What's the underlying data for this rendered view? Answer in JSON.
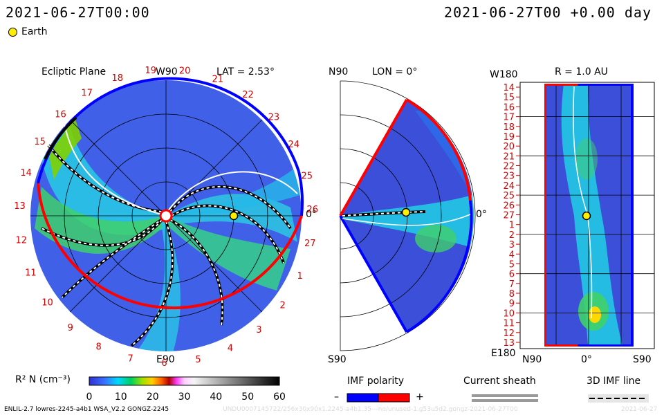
{
  "header": {
    "datetime_left": "2021-06-27T00:00",
    "datetime_right": "2021-06-27T00 +0.00 day",
    "legend_earth": "Earth"
  },
  "ecliptic": {
    "title": "Ecliptic Plane",
    "top_label": "W90",
    "bottom_label": "E90",
    "right_label": "0°",
    "lat_label": "LAT = 2.53°",
    "carrington_ticks": [
      "19",
      "20",
      "21",
      "22",
      "23",
      "24",
      "25",
      "26",
      "27",
      "1",
      "2",
      "3",
      "4",
      "5",
      "6",
      "7",
      "8",
      "9",
      "10",
      "11",
      "12",
      "13",
      "14",
      "15",
      "16",
      "17",
      "18"
    ]
  },
  "meridional": {
    "top_label": "N90",
    "bottom_label": "S90",
    "right_label": "0°",
    "lon_label": "LON = 0°"
  },
  "radial": {
    "title": "R = 1.0 AU",
    "top_label": "W180",
    "bottom_label": "E180",
    "x_labels": [
      "N90",
      "0°",
      "S90"
    ],
    "y_ticks": [
      "14",
      "15",
      "16",
      "17",
      "18",
      "19",
      "20",
      "21",
      "22",
      "23",
      "24",
      "25",
      "26",
      "27",
      "1",
      "2",
      "3",
      "4",
      "5",
      "6",
      "7",
      "8",
      "9",
      "10",
      "11",
      "12",
      "13"
    ]
  },
  "colorbar": {
    "label": "R² N (cm⁻³)",
    "ticks": [
      "0",
      "10",
      "20",
      "30",
      "40",
      "50",
      "60"
    ],
    "min": 0,
    "max": 60
  },
  "legends": {
    "imf_polarity": "IMF polarity",
    "minus": "–",
    "plus": "+",
    "current_sheath": "Current sheath",
    "imf_line": "3D IMF line"
  },
  "footer": {
    "model_info": "ENLIL-2.7 lowres-2245-a4b1 WSA_V2.2 GONGZ-2245",
    "run_id": "UNDU0007145722/256x30x90x1.2245-a4b1.35---no/unused-1.g53u5d2.gongz-2021-06-27T00",
    "date_right": "2021-06-27"
  },
  "colors": {
    "polarity_negative": "#0000ff",
    "polarity_positive": "#ff0000",
    "tick_red": "#d40000",
    "earth": "#ffee00",
    "background_blue": "#3b4fd9"
  }
}
